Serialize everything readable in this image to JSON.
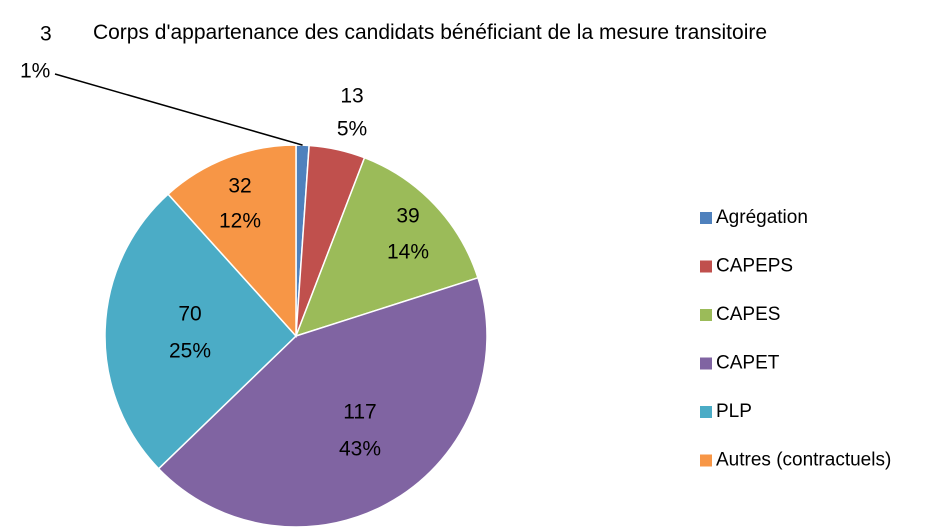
{
  "chart_data": {
    "type": "pie",
    "title": "Corps d'appartenance des candidats bénéficiant de la mesure transitoire",
    "categories": [
      "Agrégation",
      "CAPEPS",
      "CAPES",
      "CAPET",
      "PLP",
      "Autres (contractuels)"
    ],
    "values": [
      3,
      13,
      39,
      117,
      70,
      32
    ],
    "percent_labels": [
      "1%",
      "5%",
      "14%",
      "43%",
      "25%",
      "12%"
    ],
    "colors": [
      "#4f81bd",
      "#c0504d",
      "#9bbb59",
      "#8064a2",
      "#4bacc6",
      "#f79646"
    ],
    "legend": "right"
  }
}
